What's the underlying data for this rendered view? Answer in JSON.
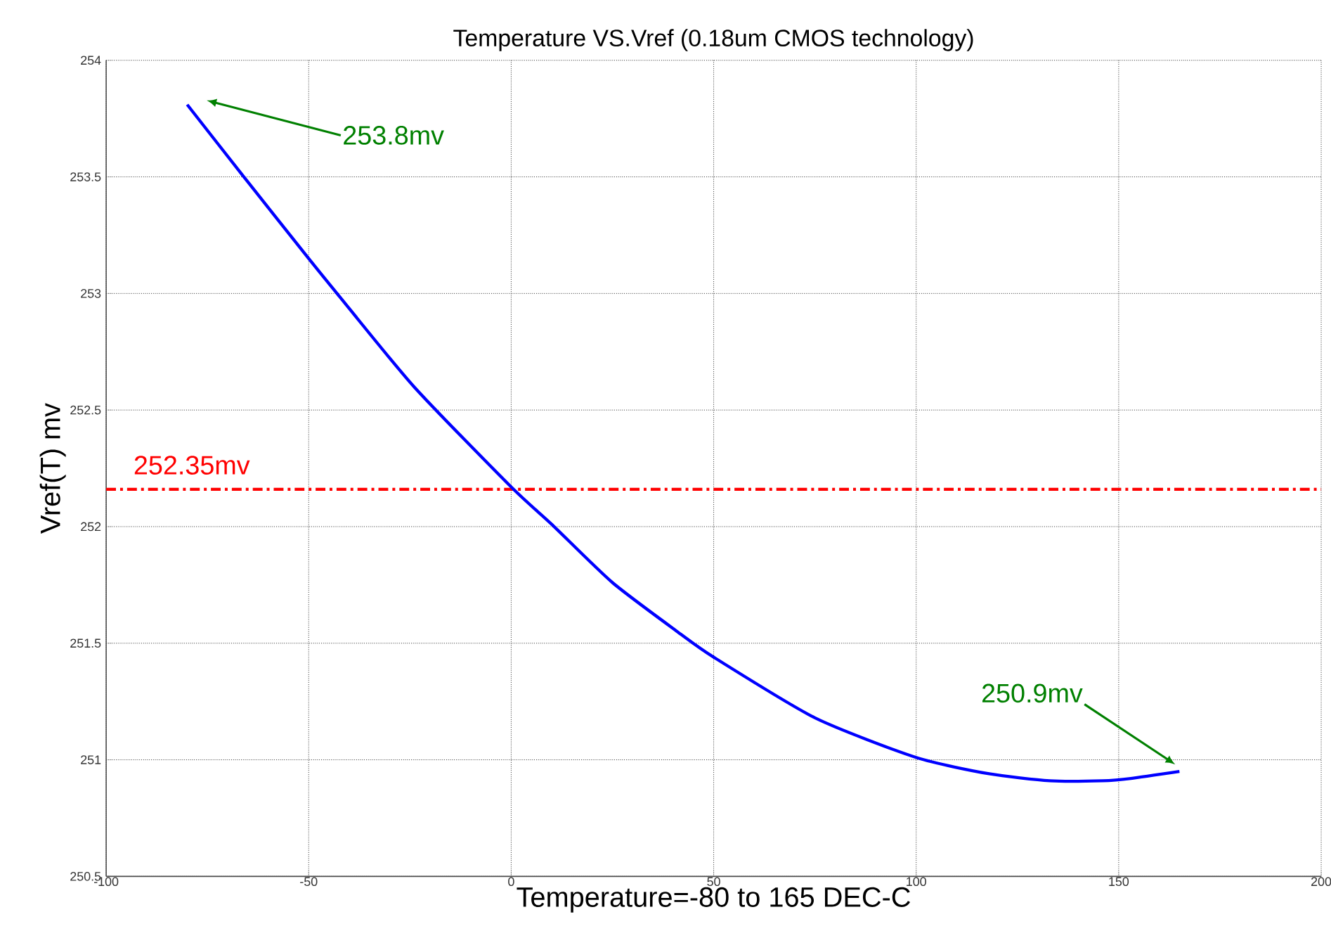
{
  "chart_data": {
    "type": "line",
    "title": "Temperature VS.Vref (0.18um CMOS technology)",
    "xlabel": "Temperature=-80 to 165 DEC-C",
    "ylabel": "Vref(T) mv",
    "series": [
      {
        "color": "#0000ff",
        "x": [
          -80,
          -66,
          -50,
          -43,
          -24,
          0,
          10,
          25,
          41,
          50,
          75,
          100,
          118,
          133,
          146,
          153,
          165
        ],
        "values": [
          253.81,
          253.5,
          253.15,
          253.0,
          252.6,
          252.17,
          252.01,
          251.76,
          251.55,
          251.44,
          251.18,
          251.01,
          250.94,
          250.91,
          250.91,
          250.92,
          250.95
        ]
      }
    ],
    "ref_lines": [
      {
        "axis": "y",
        "value": 252.16,
        "label": "252.35mv",
        "color": "#ff0000",
        "line_style": "dashdot"
      }
    ],
    "annotations": [
      "253.8mv",
      "250.9mv"
    ],
    "xlim": [
      -100,
      200
    ],
    "ylim": [
      250.5,
      254
    ],
    "xticks": [
      -100,
      -50,
      0,
      50,
      100,
      150,
      200
    ],
    "yticks": [
      250.5,
      251,
      251.5,
      252,
      252.5,
      253,
      253.5,
      254
    ],
    "grid": true
  }
}
